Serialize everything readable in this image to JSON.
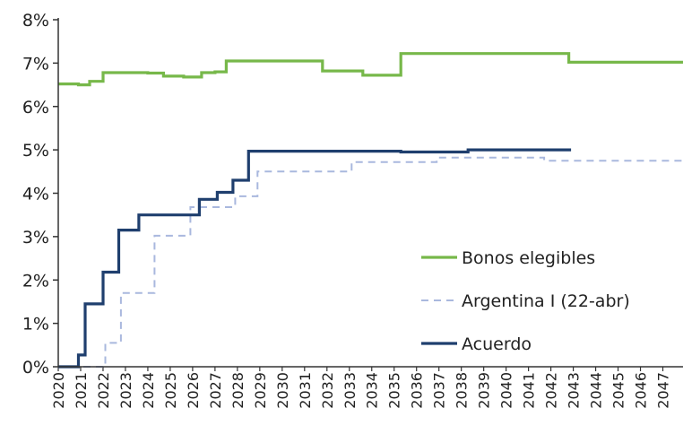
{
  "chart_data": {
    "type": "line",
    "title": "",
    "xlabel": "",
    "ylabel": "",
    "ylim": [
      0,
      8
    ],
    "xlim": [
      2020,
      2047.9
    ],
    "grid": false,
    "legend_position": "bottom-right",
    "x_tick_labels": [
      "2020",
      "2021",
      "2022",
      "2023",
      "2024",
      "2025",
      "2026",
      "2027",
      "2028",
      "2029",
      "2030",
      "2031",
      "2032",
      "2033",
      "2034",
      "2035",
      "2036",
      "2037",
      "2038",
      "2039",
      "2040",
      "2041",
      "2042",
      "2043",
      "2044",
      "2045",
      "2046",
      "2047"
    ],
    "y_tick_labels": [
      "0%",
      "1%",
      "2%",
      "3%",
      "4%",
      "5%",
      "6%",
      "7%",
      "8%"
    ],
    "series": [
      {
        "name": "Bonos elegibles",
        "color": "#77b84a",
        "style": "solid",
        "step": true,
        "points": [
          [
            2020.0,
            6.52
          ],
          [
            2020.9,
            6.5
          ],
          [
            2021.4,
            6.58
          ],
          [
            2022.0,
            6.78
          ],
          [
            2023.4,
            6.78
          ],
          [
            2024.0,
            6.77
          ],
          [
            2024.7,
            6.7
          ],
          [
            2025.6,
            6.68
          ],
          [
            2026.4,
            6.78
          ],
          [
            2027.0,
            6.8
          ],
          [
            2027.5,
            7.05
          ],
          [
            2031.8,
            6.82
          ],
          [
            2033.6,
            6.72
          ],
          [
            2035.3,
            7.22
          ],
          [
            2042.8,
            7.02
          ],
          [
            2047.9,
            7.02
          ]
        ]
      },
      {
        "name": "Argentina I (22-abr)",
        "color": "#a9b8de",
        "style": "dashed",
        "step": true,
        "points": [
          [
            2020.0,
            0.0
          ],
          [
            2021.1,
            0.0
          ],
          [
            2022.1,
            0.55
          ],
          [
            2022.8,
            1.7
          ],
          [
            2024.3,
            3.02
          ],
          [
            2025.9,
            3.68
          ],
          [
            2026.5,
            3.68
          ],
          [
            2027.9,
            3.93
          ],
          [
            2028.9,
            4.5
          ],
          [
            2031.0,
            4.5
          ],
          [
            2033.1,
            4.72
          ],
          [
            2036.9,
            4.82
          ],
          [
            2038.3,
            4.82
          ],
          [
            2041.7,
            4.75
          ],
          [
            2047.9,
            4.75
          ]
        ]
      },
      {
        "name": "Acuerdo",
        "color": "#1f3f6e",
        "style": "solid",
        "step": true,
        "points": [
          [
            2020.0,
            0.0
          ],
          [
            2020.9,
            0.27
          ],
          [
            2021.2,
            1.45
          ],
          [
            2022.0,
            2.18
          ],
          [
            2022.7,
            3.15
          ],
          [
            2023.6,
            3.5
          ],
          [
            2026.3,
            3.86
          ],
          [
            2027.1,
            4.02
          ],
          [
            2027.8,
            4.3
          ],
          [
            2028.5,
            4.97
          ],
          [
            2035.3,
            4.95
          ],
          [
            2038.3,
            5.0
          ],
          [
            2042.9,
            5.0
          ]
        ]
      }
    ]
  }
}
